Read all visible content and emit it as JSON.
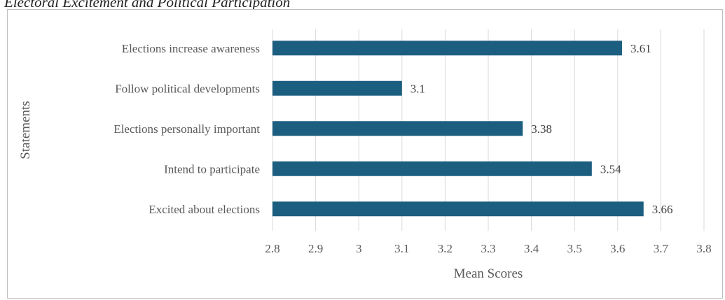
{
  "caption": "Electoral Excitement and Political Participation",
  "chart_data": {
    "type": "bar",
    "orientation": "horizontal",
    "title": "",
    "xlabel": "Mean Scores",
    "ylabel": "Statements",
    "xlim": [
      2.8,
      3.8
    ],
    "xticks": [
      "2.8",
      "2.9",
      "3",
      "3.1",
      "3.2",
      "3.3",
      "3.4",
      "3.5",
      "3.6",
      "3.7",
      "3.8"
    ],
    "categories": [
      "Elections increase awareness",
      "Follow political developments",
      "Elections personally important",
      "Intend to participate",
      "Excited about elections"
    ],
    "values": [
      3.61,
      3.1,
      3.38,
      3.54,
      3.66
    ],
    "data_labels": [
      "3.61",
      "3.1",
      "3.38",
      "3.54",
      "3.66"
    ],
    "bar_color": "#1b5e80",
    "grid": "vertical",
    "legend": "none"
  }
}
